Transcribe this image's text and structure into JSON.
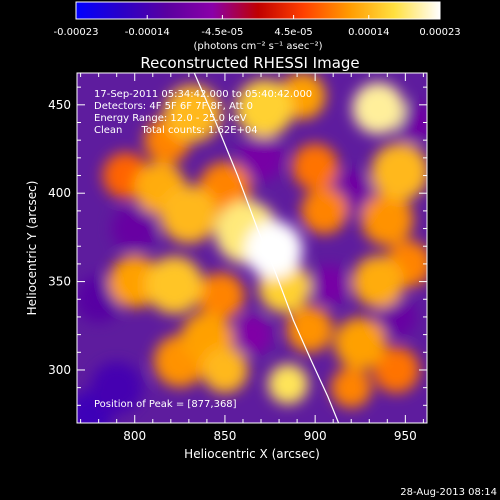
{
  "colorbar": {
    "ticks": [
      "-0.00023",
      "-0.00014",
      "-4.5e-05",
      "4.5e-05",
      "0.00014",
      "0.00023"
    ],
    "unit_label": "(photons cm⁻² s⁻¹ asec⁻²)",
    "range": [
      -0.00023,
      0.00023
    ],
    "colormap": [
      "#0000ff",
      "#2a00c8",
      "#5a00a0",
      "#8a00a8",
      "#c00000",
      "#ff4000",
      "#ff9a00",
      "#ffe040",
      "#ffffff"
    ]
  },
  "chart_data": {
    "type": "heatmap",
    "title": "Reconstructed RHESSI Image",
    "xlabel": "Heliocentric X (arcsec)",
    "ylabel": "Heliocentric Y (arcsec)",
    "xlim": [
      768,
      962
    ],
    "ylim": [
      270,
      468
    ],
    "xticks": [
      800,
      850,
      900,
      950
    ],
    "yticks": [
      300,
      350,
      400,
      450
    ],
    "peak": {
      "x": 877,
      "y": 368,
      "value": 0.00023
    },
    "limb_curve": [
      [
        833,
        468
      ],
      [
        845,
        440
      ],
      [
        857,
        410
      ],
      [
        868,
        380
      ],
      [
        878,
        355
      ],
      [
        888,
        328
      ],
      [
        898,
        305
      ],
      [
        907,
        285
      ],
      [
        913,
        270
      ]
    ],
    "sources": [
      {
        "x": 877,
        "y": 368,
        "value": 0.00023,
        "size": 10
      },
      {
        "x": 862,
        "y": 378,
        "value": 0.00019,
        "size": 11
      },
      {
        "x": 883,
        "y": 347,
        "value": 0.00016,
        "size": 9
      },
      {
        "x": 897,
        "y": 323,
        "value": 0.00011,
        "size": 8
      },
      {
        "x": 885,
        "y": 292,
        "value": 0.00018,
        "size": 7
      },
      {
        "x": 850,
        "y": 403,
        "value": 0.0001,
        "size": 9
      },
      {
        "x": 830,
        "y": 388,
        "value": 0.00014,
        "size": 10
      },
      {
        "x": 814,
        "y": 403,
        "value": 0.00013,
        "size": 9
      },
      {
        "x": 795,
        "y": 410,
        "value": 8e-05,
        "size": 8
      },
      {
        "x": 800,
        "y": 350,
        "value": 0.00012,
        "size": 9
      },
      {
        "x": 822,
        "y": 348,
        "value": 0.00015,
        "size": 10
      },
      {
        "x": 848,
        "y": 342,
        "value": 0.0001,
        "size": 8
      },
      {
        "x": 840,
        "y": 318,
        "value": 0.00012,
        "size": 9
      },
      {
        "x": 850,
        "y": 300,
        "value": 0.00014,
        "size": 8
      },
      {
        "x": 825,
        "y": 305,
        "value": 0.00011,
        "size": 9
      },
      {
        "x": 832,
        "y": 445,
        "value": 0.00014,
        "size": 10
      },
      {
        "x": 818,
        "y": 430,
        "value": 0.0001,
        "size": 8
      },
      {
        "x": 872,
        "y": 448,
        "value": 0.00016,
        "size": 10
      },
      {
        "x": 893,
        "y": 455,
        "value": 0.00012,
        "size": 8
      },
      {
        "x": 935,
        "y": 448,
        "value": 0.0002,
        "size": 9
      },
      {
        "x": 947,
        "y": 412,
        "value": 0.00014,
        "size": 10
      },
      {
        "x": 940,
        "y": 385,
        "value": 0.00011,
        "size": 9
      },
      {
        "x": 935,
        "y": 350,
        "value": 0.00013,
        "size": 9
      },
      {
        "x": 952,
        "y": 360,
        "value": 0.0001,
        "size": 8
      },
      {
        "x": 925,
        "y": 315,
        "value": 0.00012,
        "size": 9
      },
      {
        "x": 945,
        "y": 300,
        "value": 9e-05,
        "size": 8
      },
      {
        "x": 920,
        "y": 290,
        "value": 0.0001,
        "size": 7
      },
      {
        "x": 900,
        "y": 415,
        "value": 9e-05,
        "size": 8
      },
      {
        "x": 905,
        "y": 390,
        "value": 0.0001,
        "size": 8
      },
      {
        "x": 780,
        "y": 340,
        "value": -0.00012,
        "size": 8
      },
      {
        "x": 790,
        "y": 290,
        "value": -0.00014,
        "size": 9
      },
      {
        "x": 775,
        "y": 275,
        "value": -0.00015,
        "size": 8
      },
      {
        "x": 800,
        "y": 380,
        "value": -0.0001,
        "size": 8
      },
      {
        "x": 870,
        "y": 420,
        "value": -8e-05,
        "size": 8
      },
      {
        "x": 920,
        "y": 400,
        "value": -9e-05,
        "size": 8
      },
      {
        "x": 945,
        "y": 330,
        "value": -0.0001,
        "size": 7
      },
      {
        "x": 908,
        "y": 348,
        "value": -8e-05,
        "size": 7
      },
      {
        "x": 865,
        "y": 320,
        "value": -7e-05,
        "size": 7
      },
      {
        "x": 955,
        "y": 440,
        "value": -9e-05,
        "size": 7
      }
    ]
  },
  "info": {
    "line1": "17-Sep-2011 05:34:42.000 to 05:40:42.000",
    "line2": "Detectors: 4F 5F 6F 7F 8F, Att 0",
    "line3": "Energy Range: 12.0 - 25.0 keV",
    "line4": "Clean      Total counts: 1.62E+04",
    "peak_label": "Position of Peak = [877,368]"
  },
  "footer": {
    "date": "28-Aug-2013 08:14"
  }
}
